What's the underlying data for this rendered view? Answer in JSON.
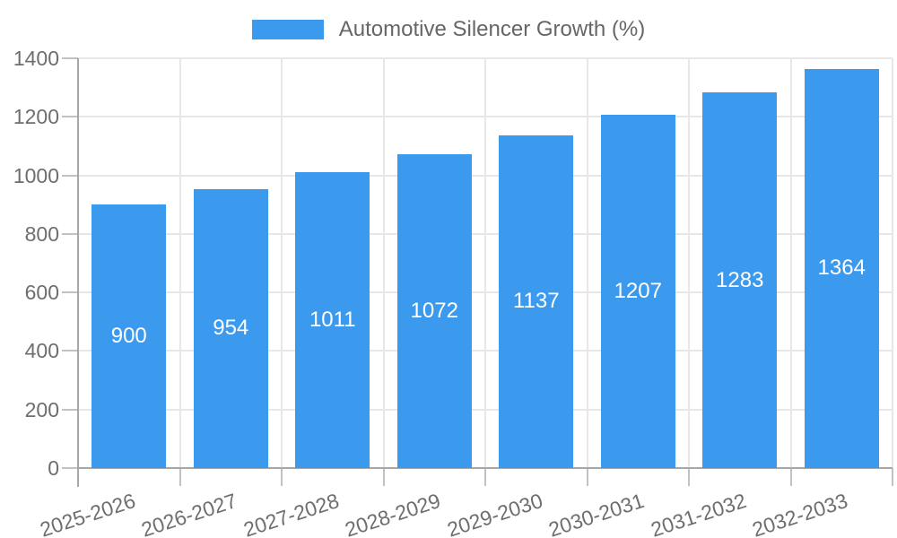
{
  "chart_data": {
    "type": "bar",
    "series_name": "Automotive Silencer Growth (%)",
    "categories": [
      "2025-2026",
      "2026-2027",
      "2027-2028",
      "2028-2029",
      "2029-2030",
      "2030-2031",
      "2031-2032",
      "2032-2033"
    ],
    "values": [
      900,
      954,
      1011,
      1072,
      1137,
      1207,
      1283,
      1364
    ],
    "value_labels": [
      "900",
      "954",
      "1011",
      "1072",
      "1137",
      "1207",
      "1283",
      "1364"
    ],
    "ylim": [
      0,
      1400
    ],
    "yticks": [
      0,
      200,
      400,
      600,
      800,
      1000,
      1200,
      1400
    ],
    "xlabel": "",
    "ylabel": "",
    "grid": true,
    "legend_position": "top",
    "bar_color": "#3b9aed",
    "value_label_color": "#ffffff"
  },
  "colors": {
    "background": "#ffffff",
    "grid_line": "#e7e7e7",
    "axis_line": "#a7a7a7",
    "tick_mark": "#c2c2c2",
    "tick_label": "#6e6e6e",
    "legend_text": "#666666"
  }
}
